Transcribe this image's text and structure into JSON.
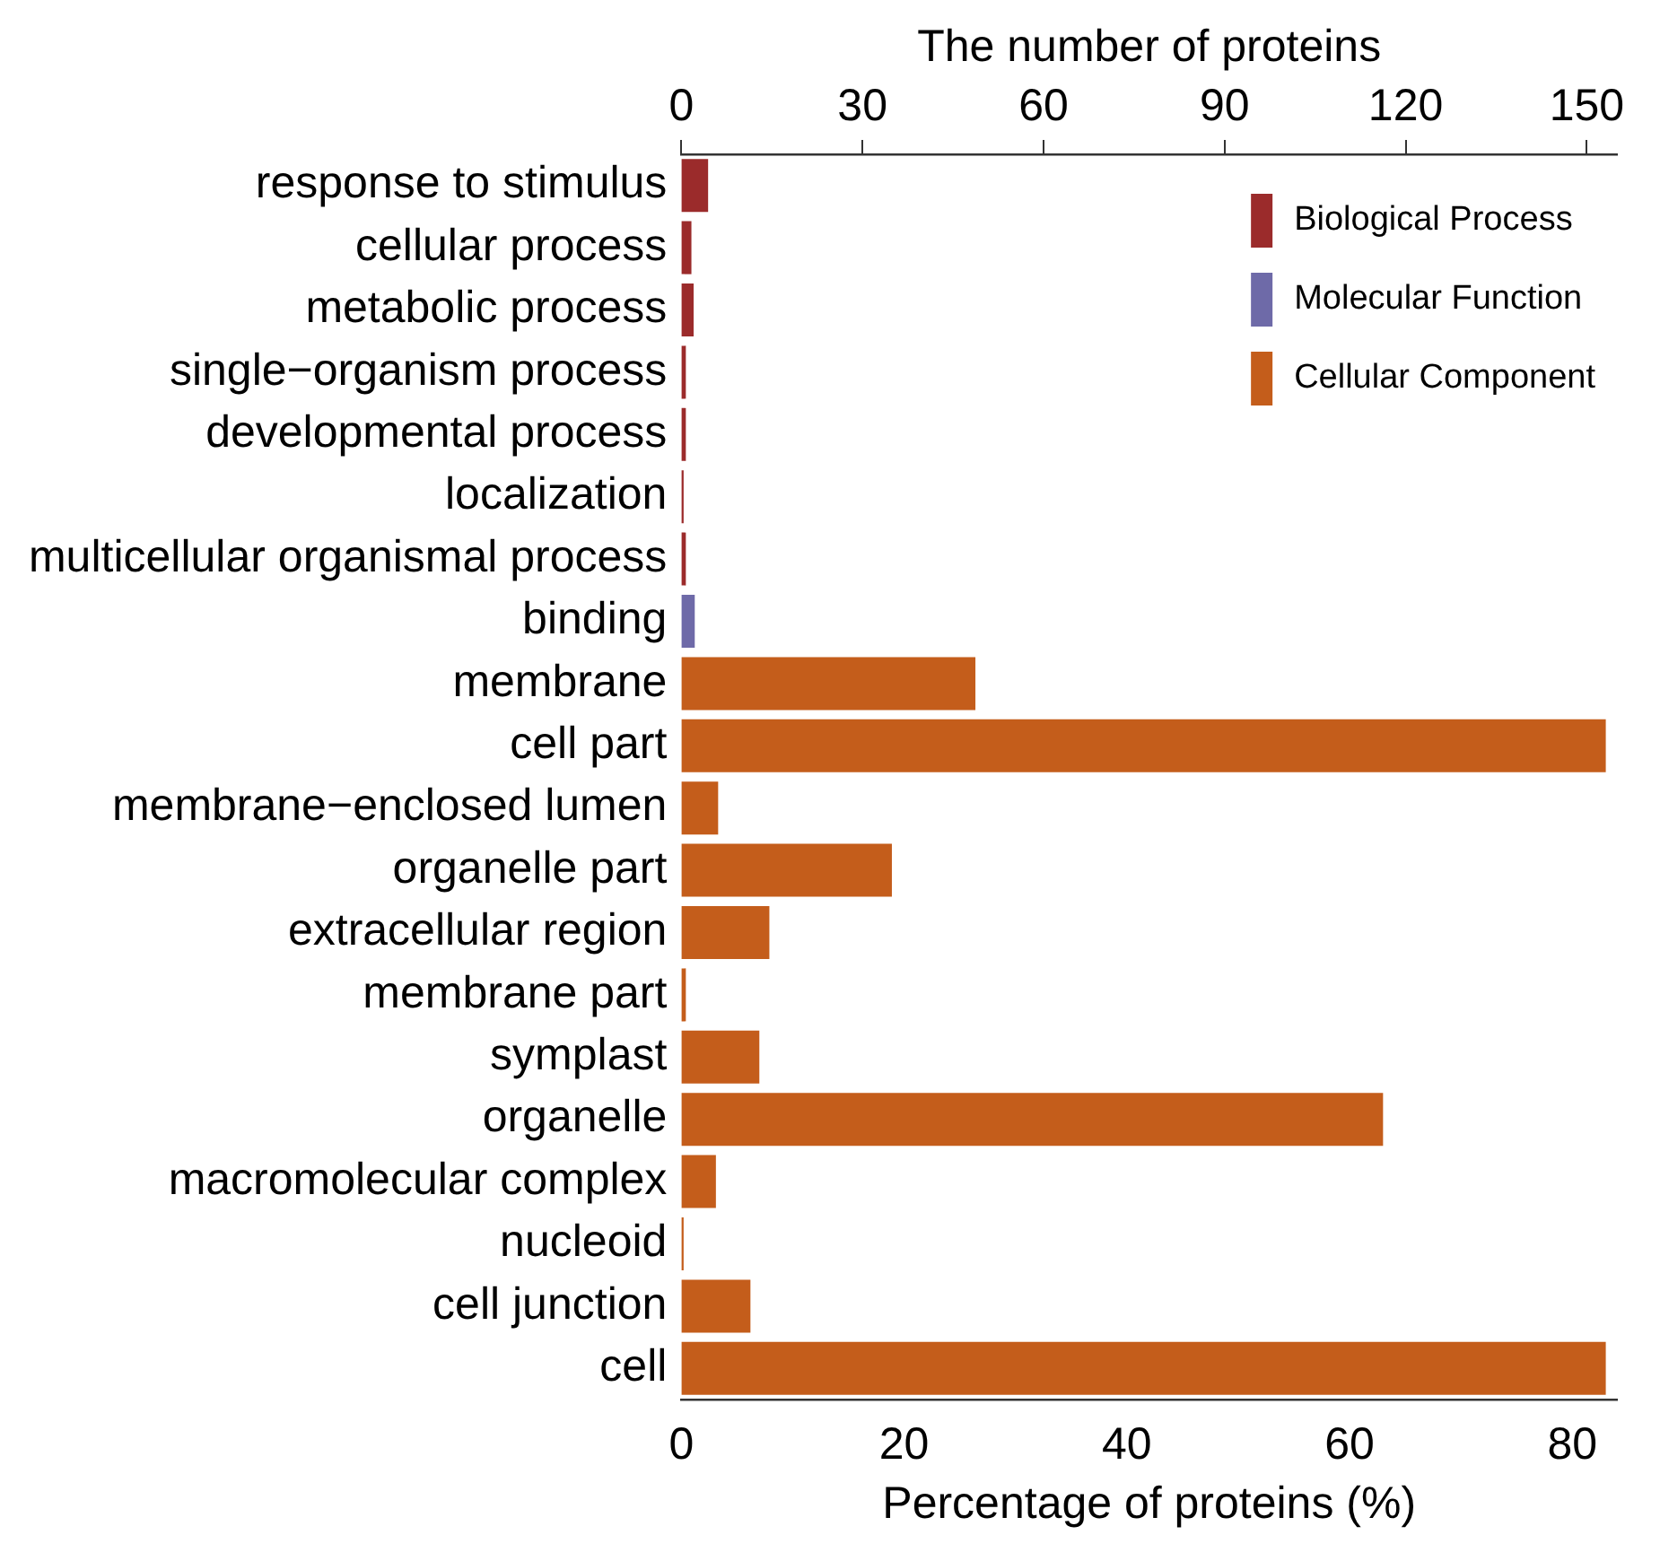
{
  "chart_data": {
    "type": "bar",
    "orientation": "horizontal",
    "xlabel": "Percentage of proteins (%)",
    "x2label": "The number of proteins",
    "categories": [
      "response to stimulus",
      "cellular process",
      "metabolic process",
      "single−organism process",
      "developmental process",
      "localization",
      "multicellular organismal process",
      "binding",
      "membrane",
      "cell part",
      "membrane−enclosed lumen",
      "organelle part",
      "extracellular region",
      "membrane part",
      "symplast",
      "organelle",
      "macromolecular complex",
      "nucleoid",
      "cell junction",
      "cell"
    ],
    "series": [
      {
        "name": "Biological Process",
        "color": "#9b2b2b",
        "values": [
          2.4,
          0.9,
          1.1,
          0.4,
          0.4,
          0.2,
          0.4,
          null,
          null,
          null,
          null,
          null,
          null,
          null,
          null,
          null,
          null,
          null,
          null,
          null
        ]
      },
      {
        "name": "Molecular Function",
        "color": "#6e6aa8",
        "values": [
          null,
          null,
          null,
          null,
          null,
          null,
          null,
          1.2,
          null,
          null,
          null,
          null,
          null,
          null,
          null,
          null,
          null,
          null,
          null,
          null
        ]
      },
      {
        "name": "Cellular Component",
        "color": "#c45d1b",
        "values": [
          null,
          null,
          null,
          null,
          null,
          null,
          null,
          null,
          26.4,
          83.0,
          3.3,
          18.9,
          7.9,
          0.4,
          7.0,
          63.0,
          3.1,
          0.2,
          6.2,
          83.0
        ]
      }
    ],
    "xlim": [
      0,
      84
    ],
    "xticks": [
      0,
      20,
      40,
      60,
      80
    ],
    "x2lim": [
      0,
      155
    ],
    "x2ticks": [
      0,
      30,
      60,
      90,
      120,
      150
    ],
    "grid": false,
    "legend": "top right"
  }
}
